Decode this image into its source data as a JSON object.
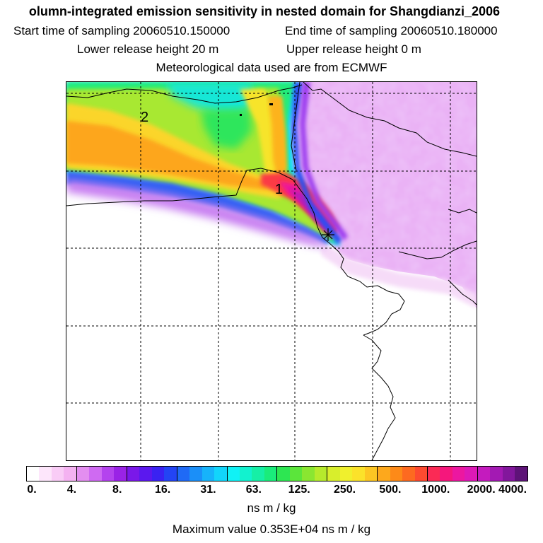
{
  "titles": {
    "line1": "olumn-integrated emission sensitivity in nested domain for Shangdianzi_2006",
    "line2_left": "Start time of sampling 20060510.150000",
    "line2_right": "End time of sampling 20060510.180000",
    "line3_left": "Lower release height   20 m",
    "line3_right": "Upper release height    0 m",
    "line4": "Meteorological data used are from ECMWF"
  },
  "map": {
    "cluster_labels": [
      "2",
      "1"
    ],
    "release_site_icon": "star-icon"
  },
  "colorbar": {
    "tick_labels": [
      "0.",
      "4.",
      "8.",
      "16.",
      "31.",
      "63.",
      "125.",
      "250.",
      "500.",
      "1000.",
      "2000.",
      "4000."
    ],
    "colors": [
      "#ffffff",
      "#fde6fb",
      "#f9ccf6",
      "#f4b2f1",
      "#e38ef0",
      "#cf6af2",
      "#b443ee",
      "#9a23e6",
      "#7a18e9",
      "#5b18ee",
      "#3a22f2",
      "#2344f4",
      "#1f6af6",
      "#1b8ff8",
      "#17b3fa",
      "#12d5fb",
      "#10f2f6",
      "#12f2cf",
      "#16efa6",
      "#1aec7b",
      "#2de652",
      "#5be53b",
      "#8ae631",
      "#b6ea2c",
      "#d8ee2c",
      "#f0f02d",
      "#fbe22a",
      "#fdc623",
      "#fda81c",
      "#fd8a18",
      "#fd6a20",
      "#fd4a30",
      "#fb2a55",
      "#f5177c",
      "#ec17a0",
      "#dd19b6",
      "#c41bbe",
      "#a31ab3",
      "#82179c",
      "#5e1378"
    ],
    "units": "ns m / kg",
    "max_text": "Maximum value  0.353E+04 ns m / kg"
  }
}
